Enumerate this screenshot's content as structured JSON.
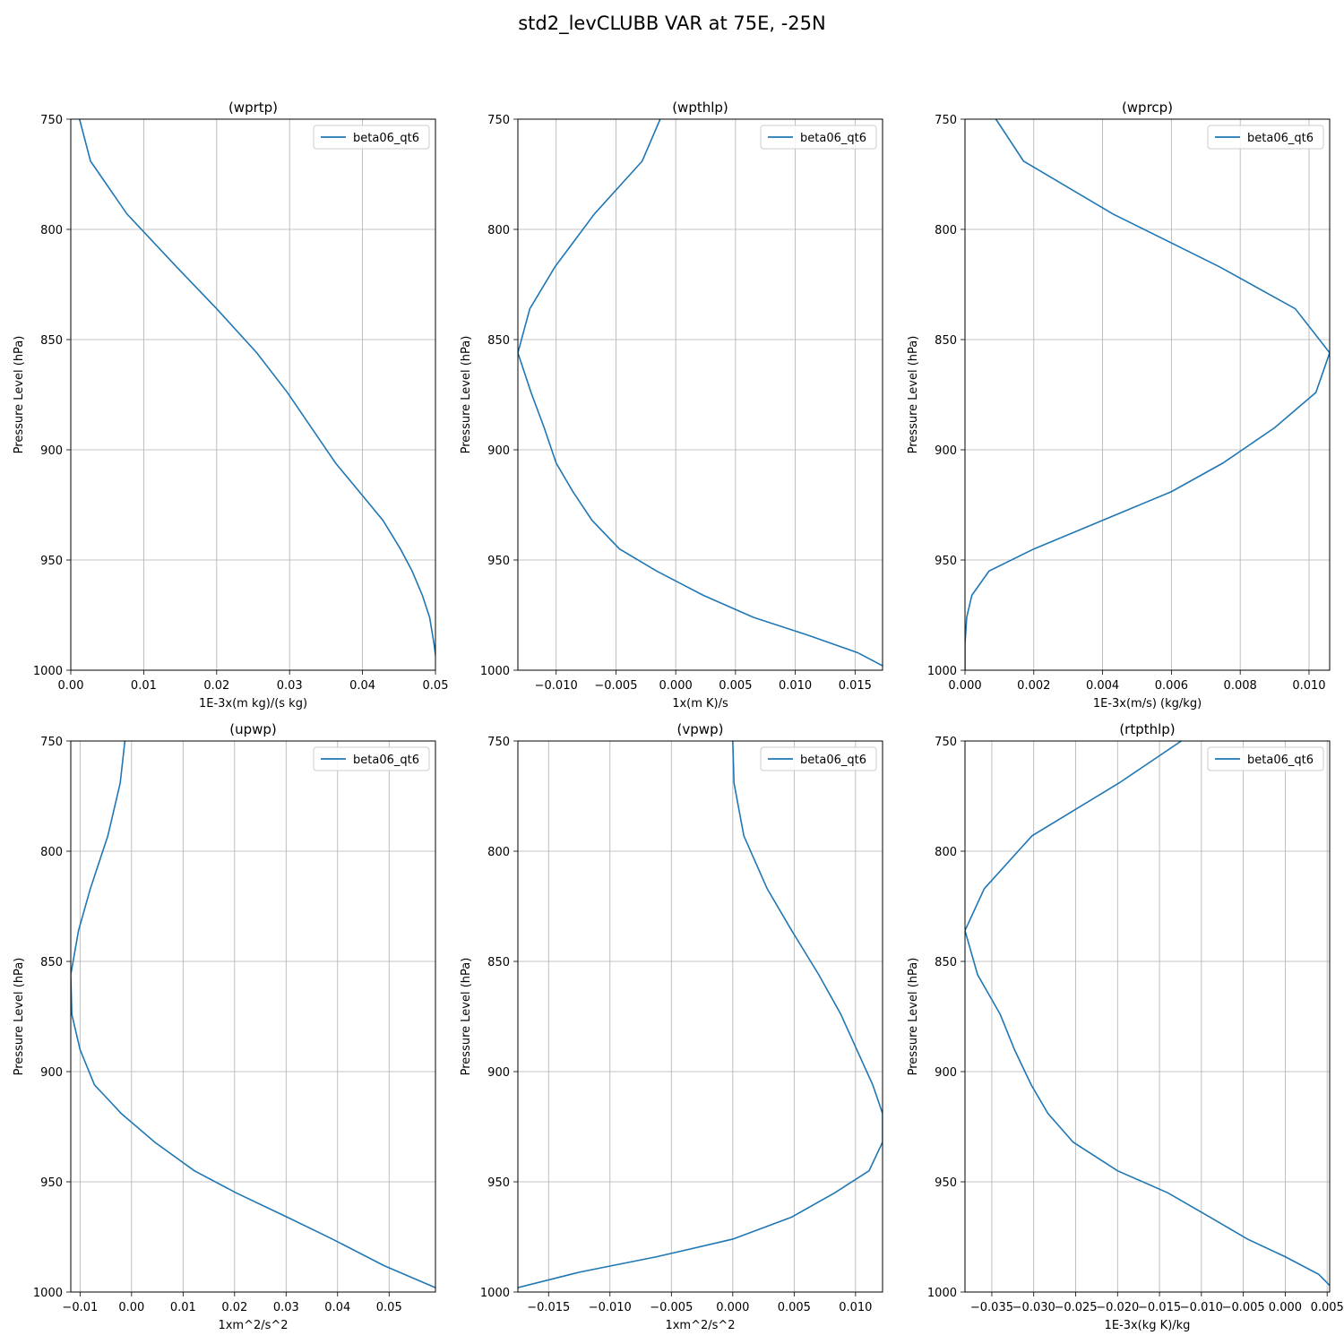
{
  "title": "std2_levCLUBB VAR at 75E, -25N",
  "chart_data": [
    {
      "type": "line",
      "title": "(wprtp)",
      "xlabel": "1E-3x(m kg)/(s kg)",
      "ylabel": "Pressure Level (hPa)",
      "xlim": [
        0.0,
        0.05
      ],
      "ylim": [
        1000,
        750
      ],
      "xticks": [
        0.0,
        0.01,
        0.02,
        0.03,
        0.04,
        0.05
      ],
      "xtick_labels": [
        "0.00",
        "0.01",
        "0.02",
        "0.03",
        "0.04",
        "0.05"
      ],
      "yticks": [
        750,
        800,
        850,
        900,
        950,
        1000
      ],
      "ytick_labels": [
        "750",
        "800",
        "850",
        "900",
        "950",
        "1000"
      ],
      "grid": true,
      "legend": "top-right",
      "series": [
        {
          "name": "beta06_qt6",
          "color": "#1f77b4",
          "x": [
            0.0012,
            0.0027,
            0.0077,
            0.0145,
            0.02,
            0.0255,
            0.0297,
            0.0363,
            0.0428,
            0.0452,
            0.0468,
            0.0482,
            0.0492,
            0.0498,
            0.0503
          ],
          "y": [
            750,
            769,
            793,
            817,
            836,
            856,
            874,
            906,
            932,
            945,
            955,
            966,
            976,
            988,
            1000
          ]
        }
      ]
    },
    {
      "type": "line",
      "title": "(wpthlp)",
      "xlabel": "1x(m K)/s",
      "ylabel": "Pressure Level (hPa)",
      "xlim": [
        -0.0132,
        0.0173
      ],
      "ylim": [
        1000,
        750
      ],
      "xticks": [
        -0.01,
        -0.005,
        0.0,
        0.005,
        0.01,
        0.015
      ],
      "xtick_labels": [
        "−0.010",
        "−0.005",
        "0.000",
        "0.005",
        "0.010",
        "0.015"
      ],
      "yticks": [
        750,
        800,
        850,
        900,
        950,
        1000
      ],
      "ytick_labels": [
        "750",
        "800",
        "850",
        "900",
        "950",
        "1000"
      ],
      "grid": true,
      "legend": "top-right",
      "series": [
        {
          "name": "beta06_qt6",
          "color": "#1f77b4",
          "x": [
            -0.0013,
            -0.0028,
            -0.0068,
            -0.0101,
            -0.0122,
            -0.0132,
            -0.0121,
            -0.011,
            -0.01,
            -0.0086,
            -0.007,
            -0.0047,
            -0.0016,
            0.0023,
            0.0065,
            0.011,
            0.0152,
            0.0173
          ],
          "y": [
            750,
            769,
            793,
            817,
            836,
            856,
            874,
            890,
            906,
            919,
            932,
            945,
            955,
            966,
            976,
            984,
            992,
            998
          ]
        }
      ]
    },
    {
      "type": "line",
      "title": "(wprcp)",
      "xlabel": "1E-3x(m/s) (kg/kg)",
      "ylabel": "Pressure Level (hPa)",
      "xlim": [
        0.0,
        0.0106
      ],
      "ylim": [
        1000,
        750
      ],
      "xticks": [
        0.0,
        0.002,
        0.004,
        0.006,
        0.008,
        0.01
      ],
      "xtick_labels": [
        "0.000",
        "0.002",
        "0.004",
        "0.006",
        "0.008",
        "0.010"
      ],
      "yticks": [
        750,
        800,
        850,
        900,
        950,
        1000
      ],
      "ytick_labels": [
        "750",
        "800",
        "850",
        "900",
        "950",
        "1000"
      ],
      "grid": true,
      "legend": "top-right",
      "series": [
        {
          "name": "beta06_qt6",
          "color": "#1f77b4",
          "x": [
            0.0009,
            0.0017,
            0.0043,
            0.0074,
            0.0096,
            0.0106,
            0.0102,
            0.009,
            0.0075,
            0.006,
            0.004,
            0.002,
            0.0007,
            0.0002,
            5e-05,
            0.0,
            0.0
          ],
          "y": [
            750,
            769,
            793,
            817,
            836,
            856,
            874,
            890,
            906,
            919,
            932,
            945,
            955,
            966,
            976,
            988,
            1000
          ]
        }
      ]
    },
    {
      "type": "line",
      "title": "(upwp)",
      "xlabel": "1xm^2/s^2",
      "ylabel": "Pressure Level (hPa)",
      "xlim": [
        -0.0118,
        0.059
      ],
      "ylim": [
        1000,
        750
      ],
      "xticks": [
        -0.01,
        0.0,
        0.01,
        0.02,
        0.03,
        0.04,
        0.05
      ],
      "xtick_labels": [
        "−0.01",
        "0.00",
        "0.01",
        "0.02",
        "0.03",
        "0.04",
        "0.05"
      ],
      "yticks": [
        750,
        800,
        850,
        900,
        950,
        1000
      ],
      "ytick_labels": [
        "750",
        "800",
        "850",
        "900",
        "950",
        "1000"
      ],
      "grid": true,
      "legend": "top-right",
      "series": [
        {
          "name": "beta06_qt6",
          "color": "#1f77b4",
          "x": [
            -0.0013,
            -0.0022,
            -0.0046,
            -0.008,
            -0.0103,
            -0.0118,
            -0.0116,
            -0.01,
            -0.0072,
            -0.002,
            0.0045,
            0.0122,
            0.0203,
            0.0302,
            0.039,
            0.049,
            0.059
          ],
          "y": [
            750,
            769,
            793,
            817,
            836,
            856,
            874,
            890,
            906,
            919,
            932,
            945,
            955,
            966,
            976,
            988,
            998
          ]
        }
      ]
    },
    {
      "type": "line",
      "title": "(vpwp)",
      "xlabel": "1xm^2/s^2",
      "ylabel": "Pressure Level (hPa)",
      "xlim": [
        -0.0175,
        0.0122
      ],
      "ylim": [
        1000,
        750
      ],
      "xticks": [
        -0.015,
        -0.01,
        -0.005,
        0.0,
        0.005,
        0.01
      ],
      "xtick_labels": [
        "−0.015",
        "−0.010",
        "−0.005",
        "0.000",
        "0.005",
        "0.010"
      ],
      "yticks": [
        750,
        800,
        850,
        900,
        950,
        1000
      ],
      "ytick_labels": [
        "750",
        "800",
        "850",
        "900",
        "950",
        "1000"
      ],
      "grid": true,
      "legend": "top-right",
      "series": [
        {
          "name": "beta06_qt6",
          "color": "#1f77b4",
          "x": [
            0.0,
            0.0001,
            0.0009,
            0.0028,
            0.0048,
            0.007,
            0.0088,
            0.0101,
            0.0114,
            0.0122,
            0.0122,
            0.0111,
            0.0083,
            0.0048,
            0.0,
            -0.0062,
            -0.0125,
            -0.0175
          ],
          "y": [
            750,
            769,
            793,
            817,
            836,
            856,
            874,
            890,
            906,
            919,
            932,
            945,
            955,
            966,
            976,
            984,
            991,
            998
          ]
        }
      ]
    },
    {
      "type": "line",
      "title": "(rtpthlp)",
      "xlabel": "1E-3x(kg K)/kg",
      "ylabel": "Pressure Level (hPa)",
      "xlim": [
        -0.0382,
        0.0053
      ],
      "ylim": [
        1000,
        750
      ],
      "xticks": [
        -0.035,
        -0.03,
        -0.025,
        -0.02,
        -0.015,
        -0.01,
        -0.005,
        0.0,
        0.005
      ],
      "xtick_labels": [
        "−0.035",
        "−0.030",
        "−0.025",
        "−0.020",
        "−0.015",
        "−0.010",
        "−0.005",
        "0.000",
        "0.005"
      ],
      "yticks": [
        750,
        800,
        850,
        900,
        950,
        1000
      ],
      "ytick_labels": [
        "750",
        "800",
        "850",
        "900",
        "950",
        "1000"
      ],
      "grid": true,
      "legend": "top-right",
      "series": [
        {
          "name": "beta06_qt6",
          "color": "#1f77b4",
          "x": [
            -0.0124,
            -0.0198,
            -0.0302,
            -0.0359,
            -0.0382,
            -0.0367,
            -0.034,
            -0.0323,
            -0.0303,
            -0.0283,
            -0.0253,
            -0.02,
            -0.014,
            -0.009,
            -0.0045,
            0.0,
            0.004,
            0.0053
          ],
          "y": [
            750,
            769,
            793,
            817,
            836,
            856,
            874,
            890,
            906,
            919,
            932,
            945,
            955,
            966,
            976,
            984,
            992,
            997
          ]
        }
      ]
    }
  ]
}
